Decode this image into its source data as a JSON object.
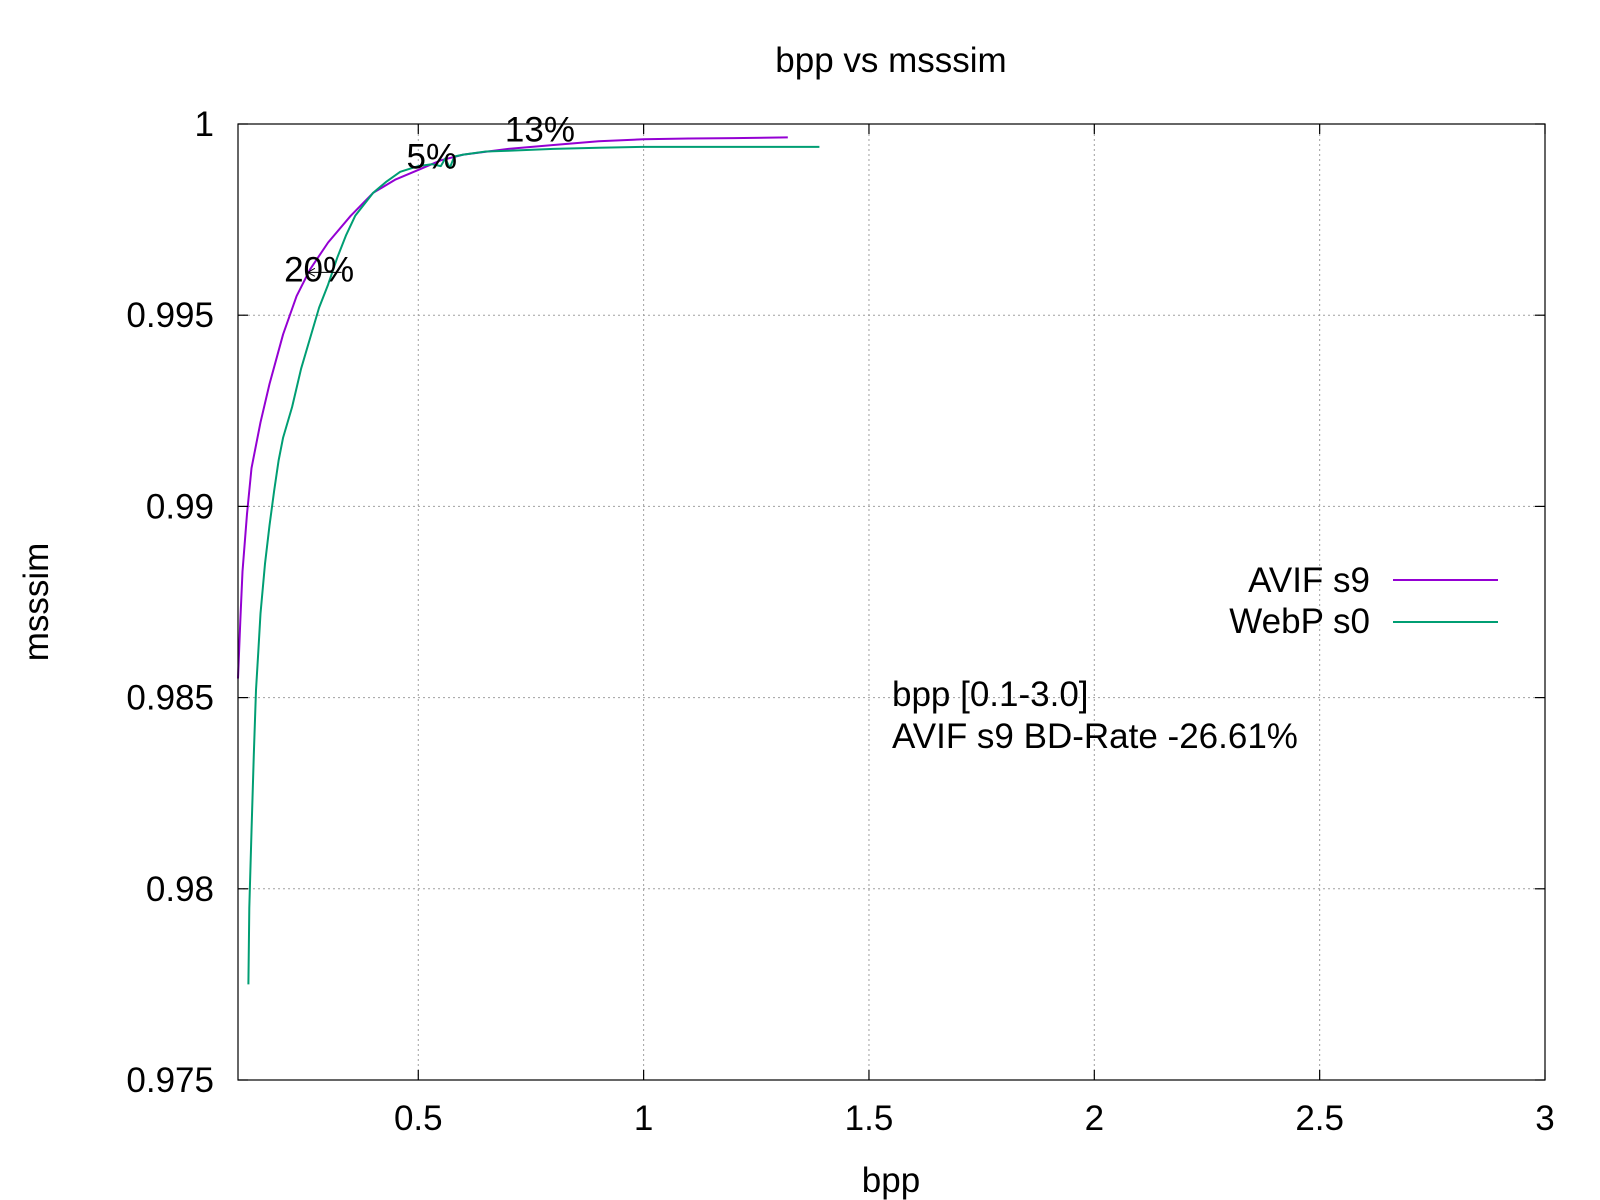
{
  "chart_data": {
    "type": "line",
    "title": "bpp vs msssim",
    "xlabel": "bpp",
    "ylabel": "msssim",
    "xlim": [
      0.1,
      3.0
    ],
    "ylim": [
      0.975,
      1.0
    ],
    "xticks": [
      0.5,
      1,
      1.5,
      2,
      2.5,
      3
    ],
    "xtick_labels": [
      "0.5",
      "1",
      "1.5",
      "2",
      "2.5",
      "3"
    ],
    "yticks": [
      0.975,
      0.98,
      0.985,
      0.99,
      0.995,
      1.0
    ],
    "ytick_labels": [
      "0.975",
      "0.98",
      "0.985",
      "0.99",
      "0.995",
      "1"
    ],
    "grid": true,
    "legend_position": "right",
    "series": [
      {
        "name": "AVIF s9",
        "color": "#9400d3",
        "x": [
          0.1,
          0.105,
          0.11,
          0.12,
          0.13,
          0.15,
          0.17,
          0.2,
          0.23,
          0.26,
          0.3,
          0.35,
          0.4,
          0.45,
          0.5,
          0.55,
          0.6,
          0.7,
          0.8,
          0.9,
          1.0,
          1.1,
          1.2,
          1.32
        ],
        "y": [
          0.9855,
          0.987,
          0.9883,
          0.9898,
          0.991,
          0.9922,
          0.9932,
          0.9945,
          0.9955,
          0.9962,
          0.9969,
          0.9976,
          0.9982,
          0.99855,
          0.9988,
          0.99905,
          0.9992,
          0.99935,
          0.99945,
          0.99955,
          0.9996,
          0.99962,
          0.99963,
          0.99965
        ]
      },
      {
        "name": "WebP s0",
        "color": "#009e73",
        "x": [
          0.123,
          0.125,
          0.13,
          0.135,
          0.14,
          0.145,
          0.15,
          0.16,
          0.17,
          0.18,
          0.19,
          0.2,
          0.22,
          0.24,
          0.26,
          0.28,
          0.3,
          0.32,
          0.34,
          0.36,
          0.38,
          0.4,
          0.43,
          0.46,
          0.5,
          0.53,
          0.55,
          0.56,
          0.57,
          0.58,
          0.6,
          0.65,
          0.7,
          0.8,
          0.9,
          1.0,
          1.2,
          1.39
        ],
        "y": [
          0.9775,
          0.9795,
          0.9815,
          0.9835,
          0.9852,
          0.9862,
          0.9872,
          0.9885,
          0.9895,
          0.9904,
          0.9912,
          0.9918,
          0.9926,
          0.9936,
          0.9944,
          0.9952,
          0.9958,
          0.9965,
          0.9971,
          0.9976,
          0.9979,
          0.9982,
          0.9985,
          0.99875,
          0.9989,
          0.99895,
          0.9989,
          0.9991,
          0.99885,
          0.99915,
          0.9992,
          0.99928,
          0.9993,
          0.99935,
          0.99938,
          0.9994,
          0.9994,
          0.9994
        ]
      }
    ],
    "annotations": [
      {
        "text": "20%",
        "x": 0.28,
        "y": 0.9962
      },
      {
        "text": "5%",
        "x": 0.53,
        "y": 0.99915
      },
      {
        "text": "13%",
        "x": 0.77,
        "y": 0.99985
      }
    ],
    "info_lines": [
      "bpp [0.1-3.0]",
      "AVIF s9 BD-Rate -26.61%"
    ],
    "info_color": "#00ff00"
  }
}
